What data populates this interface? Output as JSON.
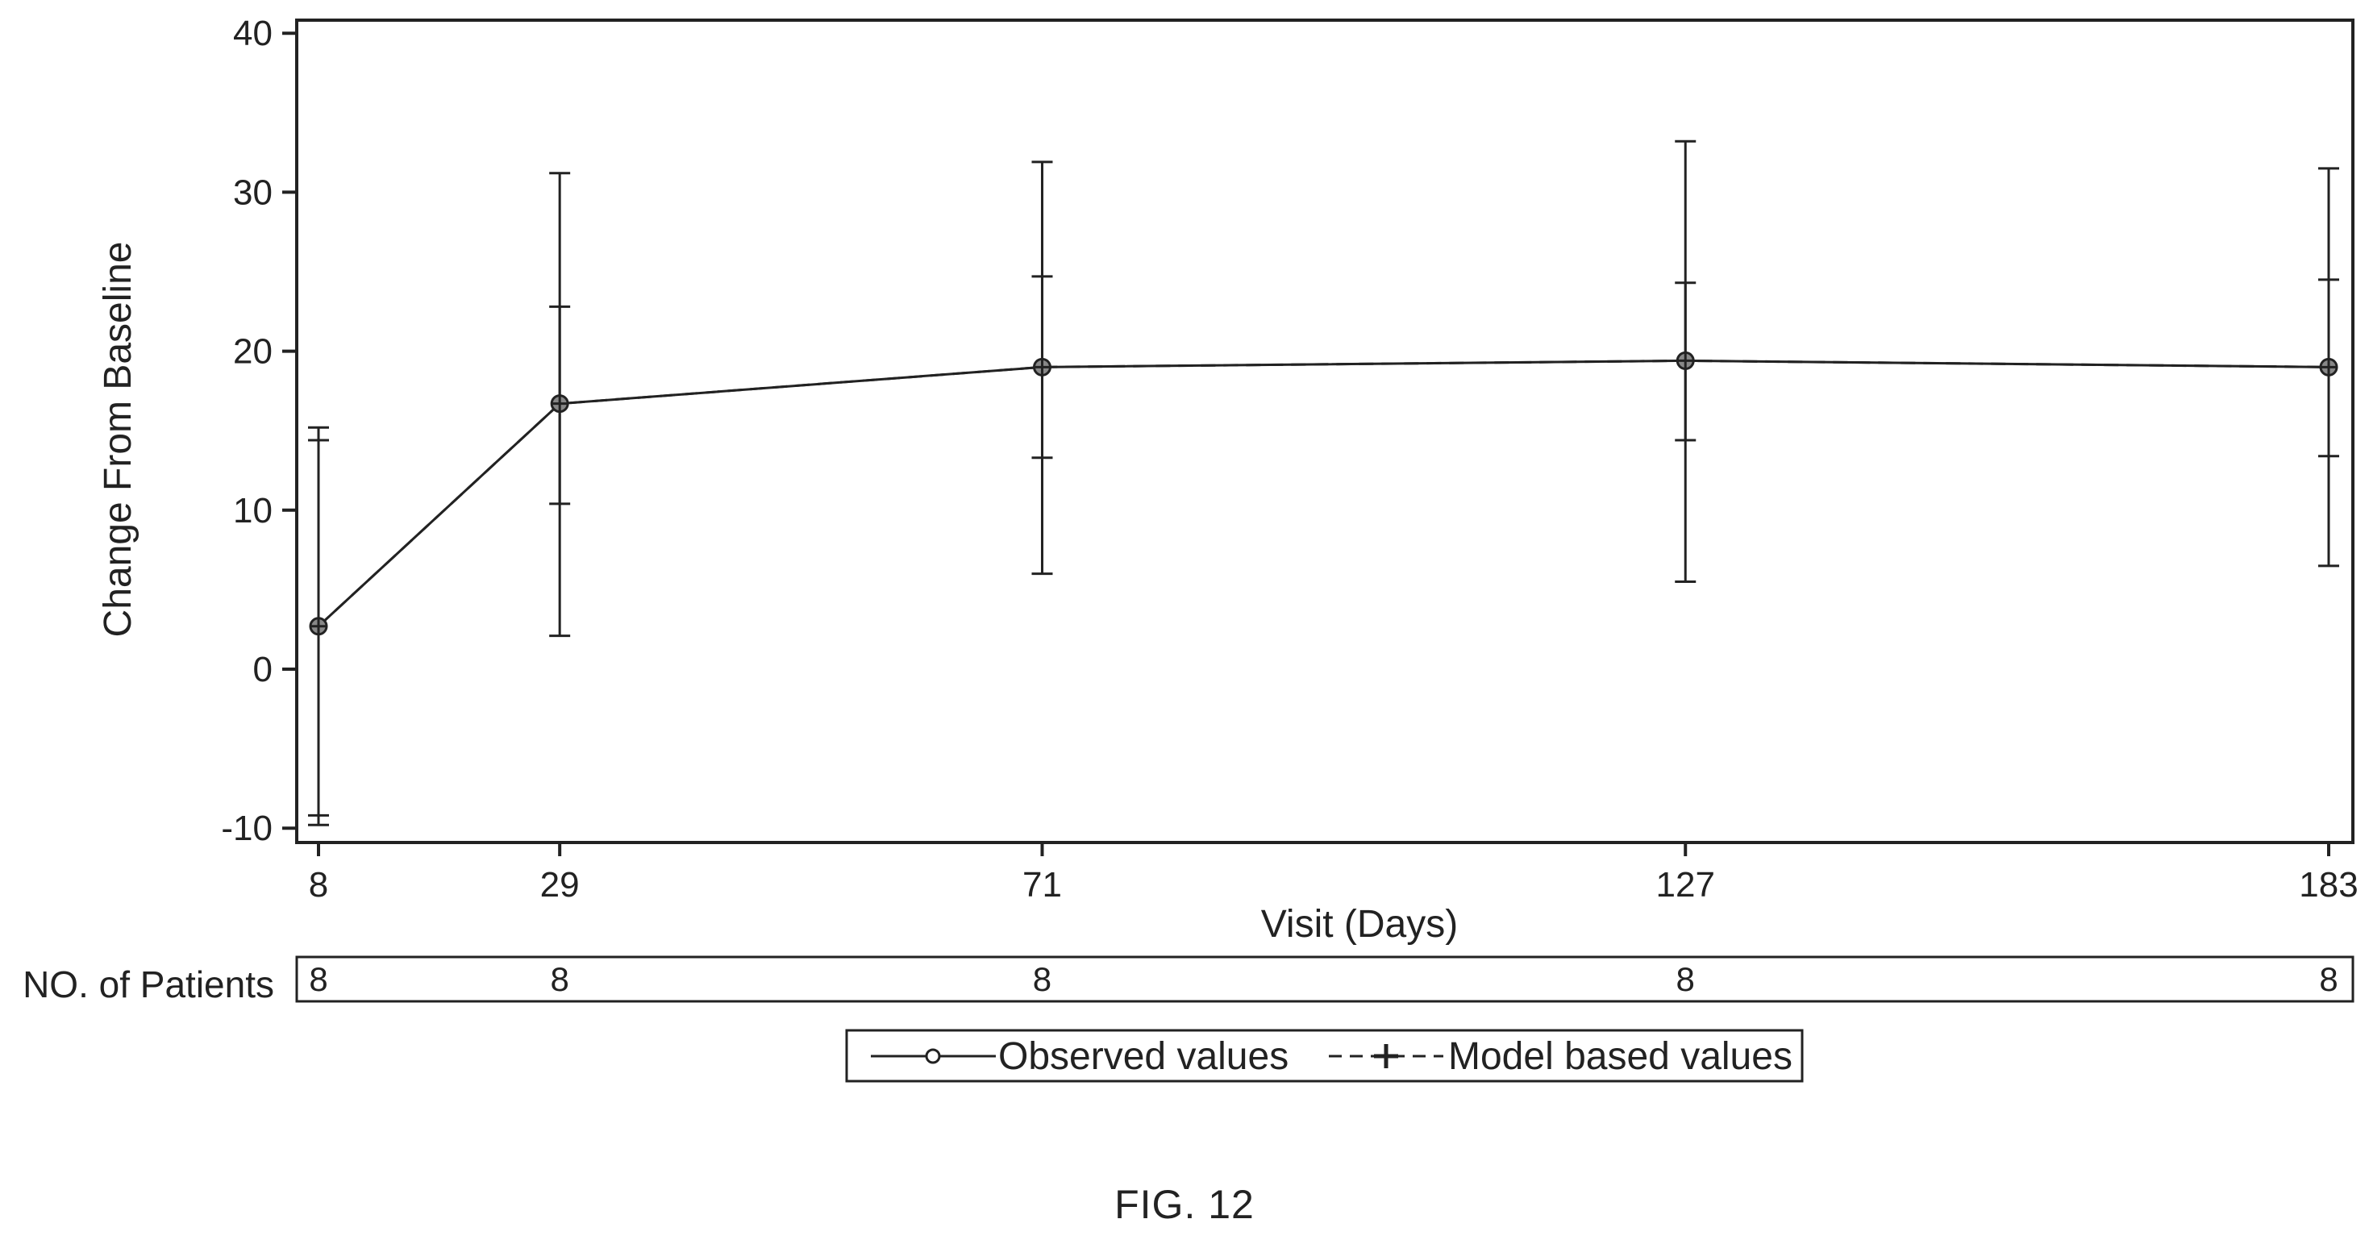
{
  "chart_data": {
    "type": "line",
    "xlabel": "Visit (Days)",
    "ylabel": "Change From Baseline",
    "x": [
      8,
      29,
      71,
      127,
      183
    ],
    "x_tick_labels": [
      "8",
      "29",
      "71",
      "127",
      "183"
    ],
    "ylim": [
      -11,
      41
    ],
    "y_ticks": [
      -10,
      0,
      10,
      20,
      30,
      40
    ],
    "y_tick_labels": [
      "-10",
      "0",
      "10",
      "20",
      "30",
      "40"
    ],
    "grid": false,
    "series": [
      {
        "name": "Observed values",
        "marker": "circle",
        "line_style": "solid",
        "values": [
          2.7,
          16.7,
          19.0,
          19.4,
          19.0
        ],
        "error_low": [
          -9.8,
          2.1,
          6.0,
          5.5,
          6.5
        ],
        "error_high": [
          15.2,
          31.2,
          31.9,
          33.2,
          31.5
        ]
      },
      {
        "name": "Model based values",
        "marker": "plus",
        "line_style": "dashed",
        "values": [
          2.7,
          16.7,
          19.0,
          19.4,
          19.0
        ],
        "error_low": [
          -9.2,
          10.4,
          13.3,
          14.4,
          13.4
        ],
        "error_high": [
          14.4,
          22.8,
          24.7,
          24.3,
          24.5
        ]
      }
    ],
    "patients": {
      "label": "NO. of Patients",
      "counts": [
        "8",
        "8",
        "8",
        "8",
        "8"
      ]
    },
    "legend_position": "bottom"
  },
  "caption": "FIG. 12",
  "colors": {
    "ink": "#222222",
    "marker_fill": "#888888",
    "background": "#ffffff"
  }
}
